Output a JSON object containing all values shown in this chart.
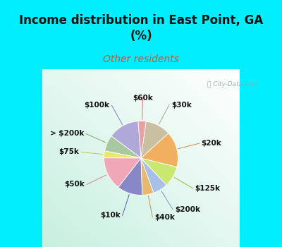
{
  "title": "Income distribution in East Point, GA\n(%)",
  "subtitle": "Other residents",
  "labels": [
    "$60k",
    "$100k",
    "> $200k",
    "$75k",
    "$50k",
    "$10k",
    "$40k",
    "$200k",
    "$125k",
    "$20k",
    "$30k"
  ],
  "values": [
    3.5,
    13.5,
    7.0,
    3.0,
    14.5,
    11.0,
    5.0,
    6.5,
    9.0,
    15.5,
    11.0
  ],
  "colors": [
    "#e8a0a0",
    "#b0a8d8",
    "#a8c8a0",
    "#e8e870",
    "#f0a8b8",
    "#8888c8",
    "#e8b870",
    "#a8c0e8",
    "#c8e870",
    "#f0b060",
    "#c8c0a0"
  ],
  "startangle": 82,
  "bg_top": "#00eeff",
  "title_color": "#111111",
  "subtitle_color": "#cc5533",
  "watermark_color": "#90a8a8",
  "label_color": "#111111",
  "fig_width": 4.0,
  "fig_height": 3.5,
  "dpi": 100,
  "title_fontsize": 12,
  "subtitle_fontsize": 10,
  "label_fontsize": 7.5
}
